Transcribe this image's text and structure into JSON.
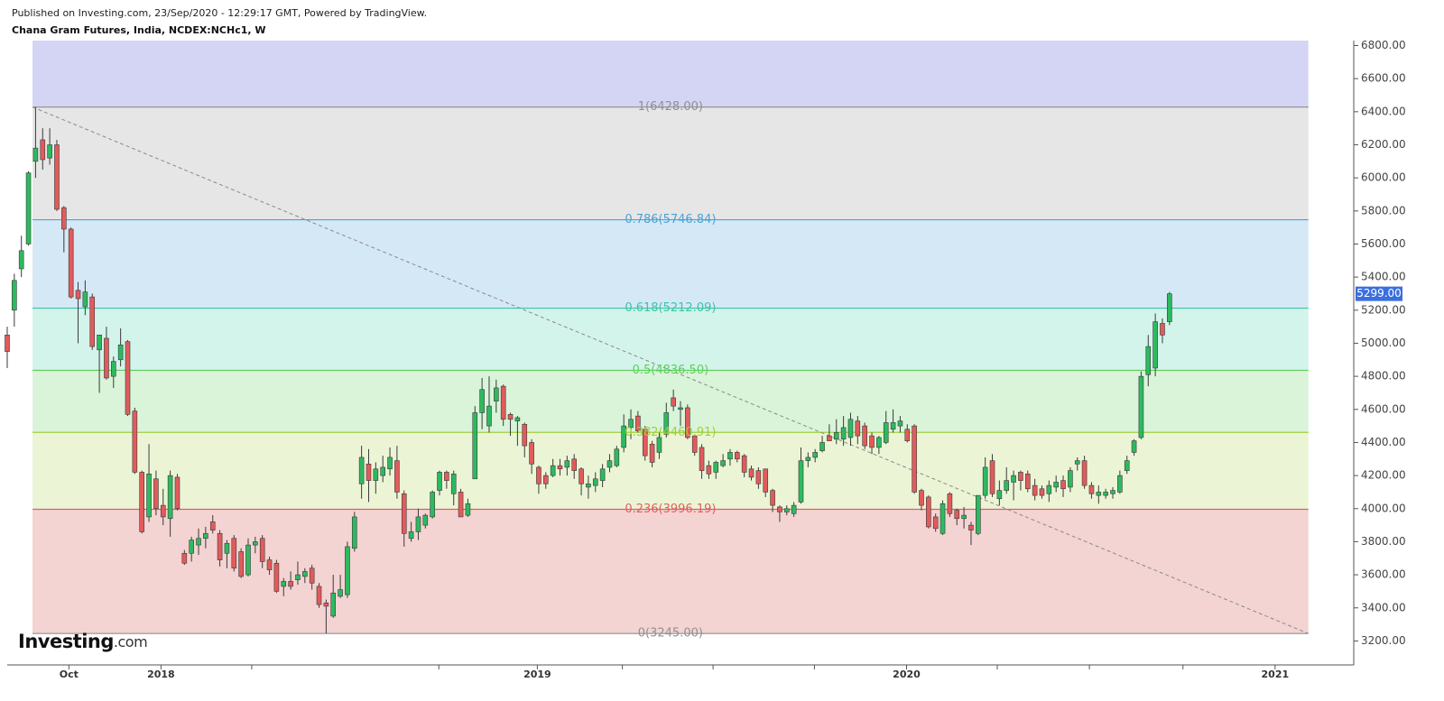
{
  "header": {
    "published": "Published on Investing.com, 23/Sep/2020 - 12:29:17 GMT, Powered by TradingView.",
    "title": "Chana Gram Futures, India, NCDEX:NCHc1, W"
  },
  "logo": {
    "name": "Investing",
    "suffix": ".com"
  },
  "chart_data": {
    "type": "candlestick",
    "up_color": "#2dba5f",
    "down_color": "#e25b5b",
    "outline_color": "#3a3a3a",
    "xlim": [
      0,
      190
    ],
    "ylim": [
      3055,
      6830
    ],
    "xticks": [
      {
        "value": 8.7,
        "label": "Oct"
      },
      {
        "value": 21.7,
        "label": "2018"
      },
      {
        "value": 74.8,
        "label": "2019"
      },
      {
        "value": 126.9,
        "label": "2020"
      },
      {
        "value": 178.9,
        "label": "2021"
      }
    ],
    "xticks_minor": [
      34.5,
      60.9,
      86.8,
      99.6,
      113.9,
      139.7,
      152.7,
      165.9
    ],
    "yticks": [
      {
        "value": 3200,
        "label": "3200.00"
      },
      {
        "value": 3400,
        "label": "3400.00"
      },
      {
        "value": 3600,
        "label": "3600.00"
      },
      {
        "value": 3800,
        "label": "3800.00"
      },
      {
        "value": 4000,
        "label": "4000.00"
      },
      {
        "value": 4200,
        "label": "4200.00"
      },
      {
        "value": 4400,
        "label": "4400.00"
      },
      {
        "value": 4600,
        "label": "4600.00"
      },
      {
        "value": 4800,
        "label": "4800.00"
      },
      {
        "value": 5000,
        "label": "5000.00"
      },
      {
        "value": 5200,
        "label": "5200.00"
      },
      {
        "value": 5400,
        "label": "5400.00"
      },
      {
        "value": 5600,
        "label": "5600.00"
      },
      {
        "value": 5800,
        "label": "5800.00"
      },
      {
        "value": 6000,
        "label": "6000.00"
      },
      {
        "value": 6200,
        "label": "6200.00"
      },
      {
        "value": 6400,
        "label": "6400.00"
      },
      {
        "value": 6600,
        "label": "6600.00"
      },
      {
        "value": 6800,
        "label": "6800.00"
      }
    ],
    "last_price": {
      "value": 5299,
      "label": "5299.00",
      "color": "#3a6fe0"
    },
    "fib": {
      "start_x": 3.57,
      "end_x": 183.6,
      "line_color": "#8a8a8a",
      "levels": [
        {
          "price": 3245.0,
          "label": "0(3245.00)",
          "color": "#909090",
          "fill": "#f4d3d3"
        },
        {
          "price": 3996.19,
          "label": "0.236(3996.19)",
          "color": "#e06060",
          "fill": "#ebf5d6"
        },
        {
          "price": 4460.91,
          "label": "0.382(4460.91)",
          "color": "#9fcf3c",
          "fill": "#d9f4d9"
        },
        {
          "price": 4836.5,
          "label": "0.5(4836.50)",
          "color": "#5ccf5c",
          "fill": "#d3f4ea"
        },
        {
          "price": 5212.09,
          "label": "0.618(5212.09)",
          "color": "#3cc4a8",
          "fill": "#d5e8f5"
        },
        {
          "price": 5746.84,
          "label": "0.786(5746.84)",
          "color": "#4ba3d6",
          "fill": "#e6e6e6"
        },
        {
          "price": 6428.0,
          "label": "1(6428.00)",
          "color": "#909090",
          "fill": "#d4d4f4"
        }
      ]
    },
    "x": [
      0,
      1,
      2,
      3,
      4,
      5,
      6,
      7,
      8,
      9,
      10,
      11,
      12,
      13,
      14,
      15,
      16,
      17,
      18,
      19,
      20,
      21,
      22,
      23,
      24,
      25,
      26,
      27,
      28,
      29,
      30,
      31,
      32,
      33,
      34,
      35,
      36,
      37,
      38,
      39,
      40,
      41,
      42,
      43,
      44,
      45,
      46,
      47,
      48,
      49,
      50,
      51,
      52,
      53,
      54,
      55,
      56,
      57,
      58,
      59,
      60,
      61,
      62,
      63,
      64,
      65,
      66,
      67,
      68,
      69,
      70,
      71,
      72,
      73,
      74,
      75,
      76,
      77,
      78,
      79,
      80,
      81,
      82,
      83,
      84,
      85,
      86,
      87,
      88,
      89,
      90,
      91,
      92,
      93,
      94,
      95,
      96,
      97,
      98,
      99,
      100,
      101,
      102,
      103,
      104,
      105,
      106,
      107,
      108,
      109,
      110,
      111,
      112,
      113,
      114,
      115,
      116,
      117,
      118,
      119,
      120,
      121,
      122,
      123,
      124,
      125,
      126,
      127,
      128,
      129,
      130,
      131,
      132,
      133,
      134,
      135,
      136,
      137,
      138,
      139,
      140,
      141,
      142,
      143,
      144,
      145,
      146,
      147,
      148,
      149,
      150,
      151,
      152,
      153,
      154,
      155,
      156,
      157,
      158,
      159,
      160,
      161,
      162,
      163,
      164
    ],
    "open": [
      5050,
      5200,
      5450,
      5600,
      6100,
      6230,
      6120,
      6200,
      5820,
      5690,
      5320,
      5220,
      5280,
      4960,
      5030,
      4800,
      4900,
      5010,
      4590,
      4220,
      3950,
      4180,
      4020,
      3940,
      4190,
      3730,
      3730,
      3780,
      3820,
      3920,
      3850,
      3730,
      3820,
      3740,
      3600,
      3780,
      3820,
      3690,
      3670,
      3530,
      3560,
      3570,
      3590,
      3640,
      3530,
      3430,
      3350,
      3470,
      3480,
      3760,
      4150,
      4270,
      4170,
      4200,
      4240,
      4290,
      4090,
      3820,
      3860,
      3900,
      3950,
      4110,
      4220,
      4090,
      4100,
      3960,
      4180,
      4580,
      4500,
      4650,
      4740,
      4570,
      4530,
      4510,
      4400,
      4250,
      4200,
      4200,
      4260,
      4250,
      4300,
      4240,
      4130,
      4140,
      4170,
      4250,
      4260,
      4370,
      4490,
      4560,
      4480,
      4390,
      4340,
      4450,
      4670,
      4600,
      4610,
      4440,
      4370,
      4260,
      4220,
      4260,
      4300,
      4340,
      4320,
      4240,
      4230,
      4240,
      4110,
      4010,
      3980,
      3970,
      4040,
      4290,
      4310,
      4350,
      4440,
      4420,
      4420,
      4430,
      4530,
      4500,
      4440,
      4370,
      4400,
      4480,
      4500,
      4480,
      4500,
      4110,
      4070,
      3950,
      3850,
      4090,
      3990,
      3940,
      3900,
      3850,
      4080,
      4290,
      4060,
      4110,
      4160,
      4220,
      4210,
      4140,
      4120,
      4090,
      4130,
      4170,
      4130,
      4270,
      4290,
      4140,
      4080,
      4080,
      4090,
      4100,
      4230,
      4340,
      4430,
      4810,
      4850,
      5120,
      5130
    ],
    "high": [
      5100,
      5420,
      5650,
      6040,
      6428,
      6300,
      6300,
      6230,
      5830,
      5700,
      5370,
      5380,
      5300,
      5050,
      5100,
      4920,
      5090,
      5020,
      4610,
      4230,
      4390,
      4230,
      4120,
      4230,
      4210,
      3750,
      3830,
      3880,
      3890,
      3960,
      3870,
      3810,
      3840,
      3760,
      3820,
      3830,
      3840,
      3710,
      3690,
      3580,
      3620,
      3680,
      3640,
      3660,
      3550,
      3450,
      3600,
      3600,
      3800,
      3980,
      4380,
      4360,
      4280,
      4320,
      4370,
      4380,
      4110,
      3920,
      4000,
      3970,
      4110,
      4230,
      4230,
      4230,
      4120,
      4060,
      4620,
      4790,
      4800,
      4780,
      4750,
      4580,
      4560,
      4520,
      4420,
      4260,
      4220,
      4300,
      4300,
      4320,
      4330,
      4250,
      4200,
      4220,
      4270,
      4330,
      4380,
      4570,
      4600,
      4590,
      4500,
      4410,
      4460,
      4640,
      4720,
      4650,
      4630,
      4450,
      4390,
      4290,
      4290,
      4330,
      4360,
      4350,
      4330,
      4260,
      4250,
      4240,
      4120,
      4020,
      4020,
      4040,
      4370,
      4340,
      4360,
      4440,
      4510,
      4540,
      4560,
      4580,
      4560,
      4520,
      4460,
      4440,
      4590,
      4600,
      4560,
      4510,
      4510,
      4120,
      4080,
      3970,
      4050,
      4100,
      4000,
      4010,
      3920,
      4080,
      4310,
      4330,
      4170,
      4250,
      4230,
      4230,
      4230,
      4180,
      4140,
      4170,
      4200,
      4200,
      4250,
      4310,
      4320,
      4160,
      4140,
      4120,
      4130,
      4230,
      4320,
      4420,
      4830,
      5050,
      5180,
      5150,
      5310
    ],
    "low": [
      4850,
      5100,
      5400,
      5590,
      6000,
      6050,
      6080,
      5800,
      5550,
      5270,
      5000,
      5170,
      4960,
      4700,
      4780,
      4730,
      4860,
      4560,
      4210,
      3850,
      3920,
      3960,
      3900,
      3830,
      3990,
      3660,
      3680,
      3720,
      3760,
      3850,
      3650,
      3640,
      3620,
      3580,
      3590,
      3730,
      3640,
      3600,
      3490,
      3470,
      3510,
      3540,
      3550,
      3510,
      3400,
      3245,
      3340,
      3460,
      3460,
      3740,
      4060,
      4040,
      4090,
      4160,
      4200,
      4060,
      3770,
      3800,
      3810,
      3880,
      3940,
      4080,
      4120,
      4020,
      3950,
      3950,
      4180,
      4480,
      4460,
      4580,
      4500,
      4440,
      4380,
      4310,
      4210,
      4090,
      4120,
      4190,
      4200,
      4200,
      4180,
      4080,
      4060,
      4100,
      4130,
      4220,
      4250,
      4340,
      4420,
      4460,
      4290,
      4250,
      4300,
      4430,
      4590,
      4500,
      4420,
      4320,
      4180,
      4180,
      4180,
      4250,
      4260,
      4280,
      4190,
      4170,
      4120,
      4070,
      3980,
      3920,
      3960,
      3950,
      4030,
      4250,
      4280,
      4340,
      4420,
      4390,
      4380,
      4380,
      4390,
      4360,
      4330,
      4330,
      4390,
      4460,
      4460,
      4400,
      4090,
      3990,
      3880,
      3860,
      3840,
      3950,
      3900,
      3880,
      3780,
      3840,
      4060,
      4070,
      4020,
      4090,
      4050,
      4110,
      4100,
      4050,
      4060,
      4040,
      4100,
      4070,
      4100,
      4230,
      4120,
      4060,
      4030,
      4060,
      4060,
      4090,
      4210,
      4320,
      4420,
      4740,
      4800,
      5000,
      5110
    ],
    "close": [
      4950,
      5380,
      5560,
      6030,
      6180,
      6110,
      6200,
      5810,
      5690,
      5280,
      5270,
      5310,
      4980,
      5050,
      4790,
      4890,
      4990,
      4570,
      4220,
      3860,
      4210,
      4000,
      3950,
      4200,
      4000,
      3670,
      3810,
      3820,
      3850,
      3870,
      3690,
      3790,
      3640,
      3590,
      3780,
      3800,
      3680,
      3630,
      3500,
      3560,
      3530,
      3600,
      3620,
      3550,
      3420,
      3410,
      3490,
      3510,
      3770,
      3950,
      4310,
      4170,
      4240,
      4250,
      4310,
      4100,
      3850,
      3860,
      3950,
      3960,
      4100,
      4220,
      4170,
      4210,
      3950,
      4030,
      4580,
      4720,
      4620,
      4730,
      4540,
      4540,
      4550,
      4380,
      4270,
      4150,
      4150,
      4260,
      4240,
      4290,
      4230,
      4150,
      4150,
      4180,
      4240,
      4290,
      4360,
      4500,
      4540,
      4470,
      4320,
      4280,
      4430,
      4580,
      4620,
      4610,
      4430,
      4340,
      4230,
      4210,
      4280,
      4290,
      4340,
      4300,
      4220,
      4190,
      4150,
      4100,
      4020,
      3980,
      4000,
      4020,
      4290,
      4310,
      4340,
      4400,
      4410,
      4460,
      4490,
      4540,
      4440,
      4380,
      4370,
      4430,
      4520,
      4520,
      4530,
      4410,
      4100,
      4020,
      3890,
      3880,
      4030,
      3970,
      3940,
      3960,
      3870,
      4080,
      4250,
      4090,
      4110,
      4170,
      4200,
      4170,
      4120,
      4080,
      4080,
      4140,
      4160,
      4120,
      4230,
      4290,
      4140,
      4090,
      4100,
      4100,
      4110,
      4200,
      4290,
      4410,
      4800,
      4980,
      5130,
      5050,
      5299
    ]
  }
}
